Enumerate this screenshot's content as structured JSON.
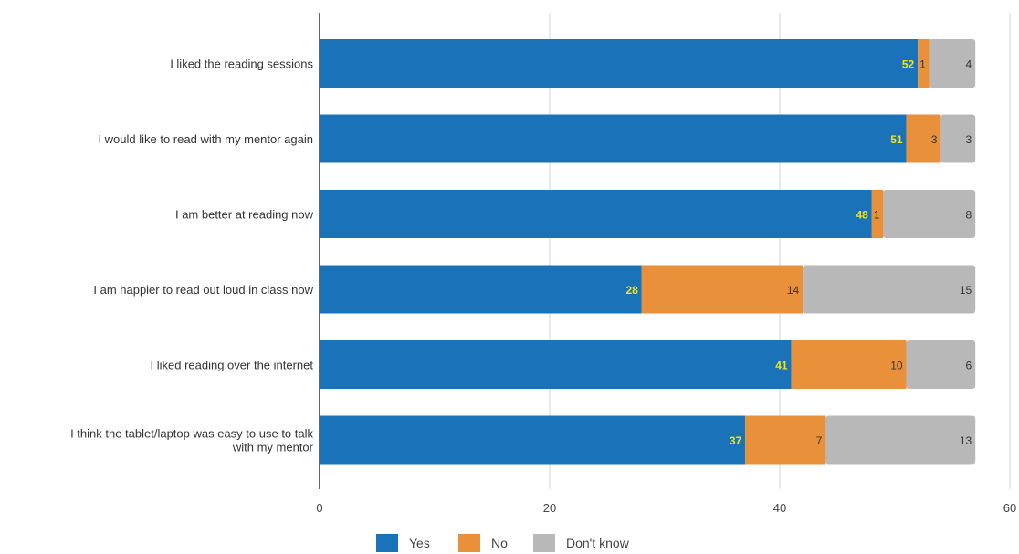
{
  "chart_data": {
    "type": "bar",
    "orientation": "horizontal",
    "stacked": true,
    "title": "",
    "xlabel": "",
    "ylabel": "",
    "xlim": [
      0,
      60
    ],
    "xticks": [
      "0",
      "20",
      "40",
      "60"
    ],
    "grid": true,
    "legend_position": "bottom",
    "categories": [
      [
        "I liked the reading sessions"
      ],
      [
        "I would like to read with my mentor again"
      ],
      [
        "I am better at reading now"
      ],
      [
        "I am happier to read out loud in class now"
      ],
      [
        "I liked reading over the internet"
      ],
      [
        "I think the tablet/laptop was easy to use to talk",
        "with my mentor"
      ]
    ],
    "series": [
      {
        "name": "Yes",
        "color": "#1a73b8",
        "label_color": "#f2e516",
        "values": [
          52,
          51,
          48,
          28,
          41,
          37
        ]
      },
      {
        "name": "No",
        "color": "#e8913a",
        "label_color": "#333333",
        "values": [
          1,
          3,
          1,
          14,
          10,
          7
        ]
      },
      {
        "name": "Don't know",
        "color": "#b8b8b8",
        "label_color": "#333333",
        "values": [
          4,
          3,
          8,
          15,
          6,
          13
        ]
      }
    ]
  }
}
